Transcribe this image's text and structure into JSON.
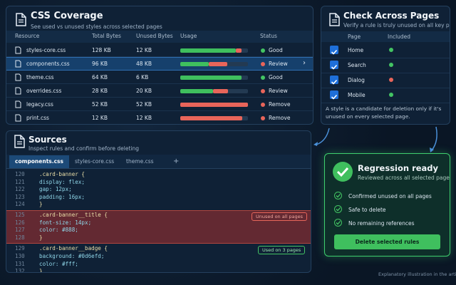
{
  "coverage": {
    "title": "CSS Coverage",
    "subtitle": "See used vs unused styles across selected pages",
    "columns": [
      "Resource",
      "Total Bytes",
      "Unused Bytes",
      "Usage",
      "Status"
    ],
    "rows": [
      {
        "resource": "styles-core.css",
        "total": "128 KB",
        "unused": "12 KB",
        "used_pct": 82,
        "unused_pct": 9,
        "status": "Good",
        "status_color": "#43c463"
      },
      {
        "resource": "components.css",
        "total": "96 KB",
        "unused": "48 KB",
        "used_pct": 42,
        "unused_pct": 27,
        "status": "Review",
        "status_color": "#e8655a"
      },
      {
        "resource": "theme.css",
        "total": "64 KB",
        "unused": "6 KB",
        "used_pct": 90,
        "unused_pct": 0,
        "status": "Good",
        "status_color": "#43c463"
      },
      {
        "resource": "overrides.css",
        "total": "28 KB",
        "unused": "20 KB",
        "used_pct": 48,
        "unused_pct": 23,
        "status": "Review",
        "status_color": "#e8655a"
      },
      {
        "resource": "legacy.css",
        "total": "52 KB",
        "unused": "52 KB",
        "used_pct": 0,
        "unused_pct": 100,
        "status": "Remove",
        "status_color": "#e8655a"
      },
      {
        "resource": "print.css",
        "total": "12 KB",
        "unused": "12 KB",
        "used_pct": 0,
        "unused_pct": 92,
        "status": "Remove",
        "status_color": "#e8655a"
      }
    ]
  },
  "pages": {
    "title": "Check Across Pages",
    "subtitle": "Verify a rule is truly unused on all key paths",
    "columns": [
      "Page",
      "Included"
    ],
    "rows": [
      {
        "page": "Home",
        "dot_color": "#43c463"
      },
      {
        "page": "Search",
        "dot_color": "#43c463"
      },
      {
        "page": "Dialog",
        "dot_color": "#e8655a"
      },
      {
        "page": "Mobile",
        "dot_color": "#43c463"
      }
    ],
    "note": "A style is a candidate for deletion only if it's unused on every selected page."
  },
  "sources": {
    "title": "Sources",
    "subtitle": "Inspect rules and confirm before deleting",
    "tabs": [
      "components.css",
      "styles-core.css",
      "theme.css",
      "+"
    ],
    "lines": [
      {
        "n": "120",
        "code": ".card-banner {"
      },
      {
        "n": "121",
        "code": "  display: flex;"
      },
      {
        "n": "122",
        "code": "  gap: 12px;"
      },
      {
        "n": "123",
        "code": "  padding: 16px;"
      },
      {
        "n": "124",
        "code": "}"
      },
      {
        "n": "125",
        "code": ".card-banner__title {"
      },
      {
        "n": "126",
        "code": "  font-size: 14px;"
      },
      {
        "n": "127",
        "code": "  color: #888;"
      },
      {
        "n": "128",
        "code": "}"
      },
      {
        "n": "129",
        "code": ".card-banner__badge {"
      },
      {
        "n": "130",
        "code": "  background: #0d6efd;"
      },
      {
        "n": "131",
        "code": "  color: #fff;"
      },
      {
        "n": "132",
        "code": "}"
      }
    ],
    "badges": [
      "Unused on all pages",
      "Used on 3 pages"
    ]
  },
  "regression": {
    "title": "Regression ready",
    "subtitle": "Reviewed across all selected pages",
    "checks": [
      "Confirmed unused on all pages",
      "Safe to delete",
      "No remaining references"
    ],
    "button": "Delete selected rules"
  },
  "footer": "Explanatory illustration in the article"
}
